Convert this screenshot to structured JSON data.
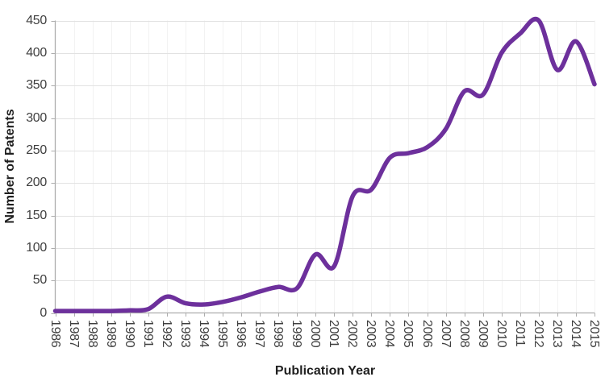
{
  "chart_data": {
    "type": "line",
    "title": "",
    "xlabel": "Publication Year",
    "ylabel": "Number of Patents",
    "x": [
      1986,
      1987,
      1988,
      1989,
      1990,
      1991,
      1992,
      1993,
      1994,
      1995,
      1996,
      1997,
      1998,
      1999,
      2000,
      2001,
      2002,
      2003,
      2004,
      2005,
      2006,
      2007,
      2008,
      2009,
      2010,
      2011,
      2012,
      2013,
      2014,
      2015
    ],
    "values": [
      3,
      3,
      3,
      3,
      4,
      6,
      25,
      15,
      13,
      17,
      24,
      33,
      40,
      38,
      90,
      72,
      180,
      190,
      239,
      246,
      255,
      283,
      341,
      336,
      400,
      430,
      450,
      374,
      418,
      352
    ],
    "ylim": [
      0,
      450
    ],
    "ytick_step": 50,
    "grid": true,
    "legend": "none",
    "smooth": true,
    "line_color": "#6D309C",
    "colors": {
      "horizontal_gridline": "#E2E2E2",
      "vertical_gridline": "#F2F2F2",
      "axis": "#ADADAD",
      "tick_label": "#3F3F3F",
      "axis_title": "#1F1F1F"
    }
  }
}
